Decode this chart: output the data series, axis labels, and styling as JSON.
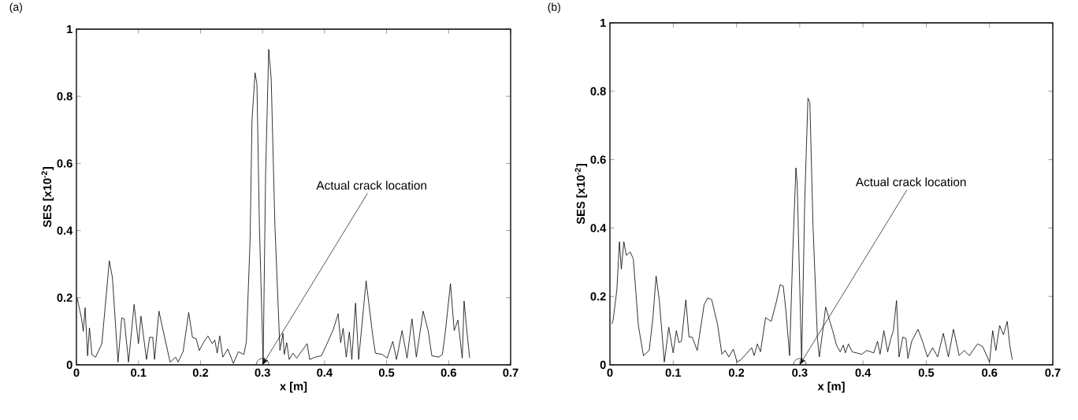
{
  "chart_data": [
    {
      "type": "line",
      "title": "(a)",
      "xlabel": "x [m]",
      "ylabel": "SES [x10$^{-2}$]",
      "color": "#000000",
      "xlim": [
        0,
        0.7
      ],
      "ylim": [
        0,
        1
      ],
      "xticks": [
        0,
        0.1,
        0.2,
        0.3,
        0.4,
        0.5,
        0.6,
        0.7
      ],
      "yticks": [
        0,
        0.2,
        0.4,
        0.6,
        0.8,
        1
      ],
      "x": [
        0.001,
        0.008,
        0.011,
        0.014,
        0.018,
        0.021,
        0.025,
        0.031,
        0.041,
        0.053,
        0.058,
        0.067,
        0.073,
        0.077,
        0.084,
        0.093,
        0.1,
        0.104,
        0.113,
        0.118,
        0.123,
        0.126,
        0.133,
        0.138,
        0.151,
        0.16,
        0.164,
        0.172,
        0.181,
        0.187,
        0.193,
        0.198,
        0.206,
        0.212,
        0.219,
        0.223,
        0.227,
        0.231,
        0.236,
        0.244,
        0.253,
        0.261,
        0.27,
        0.274,
        0.28,
        0.283,
        0.288,
        0.291,
        0.295,
        0.301,
        0.305,
        0.31,
        0.314,
        0.32,
        0.326,
        0.328,
        0.333,
        0.335,
        0.339,
        0.343,
        0.349,
        0.355,
        0.372,
        0.376,
        0.385,
        0.395,
        0.404,
        0.414,
        0.422,
        0.426,
        0.43,
        0.435,
        0.44,
        0.444,
        0.45,
        0.455,
        0.467,
        0.478,
        0.482,
        0.493,
        0.501,
        0.51,
        0.516,
        0.525,
        0.533,
        0.541,
        0.548,
        0.559,
        0.567,
        0.573,
        0.584,
        0.59,
        0.595,
        0.603,
        0.609,
        0.615,
        0.622,
        0.625,
        0.63,
        0.634
      ],
      "values": [
        0.2,
        0.14,
        0.1,
        0.17,
        0.027,
        0.11,
        0.03,
        0.023,
        0.063,
        0.31,
        0.26,
        0.008,
        0.14,
        0.137,
        0.008,
        0.18,
        0.063,
        0.145,
        0.016,
        0.082,
        0.082,
        0.016,
        0.16,
        0.117,
        0.008,
        0.023,
        0.008,
        0.04,
        0.156,
        0.082,
        0.078,
        0.043,
        0.07,
        0.086,
        0.063,
        0.074,
        0.035,
        0.086,
        0.023,
        0.047,
        0.004,
        0.039,
        0.031,
        0.07,
        0.375,
        0.727,
        0.87,
        0.836,
        0.414,
        0.004,
        0.57,
        0.94,
        0.852,
        0.414,
        0.14,
        0.043,
        0.094,
        0.031,
        0.066,
        0.016,
        0.035,
        0.02,
        0.063,
        0.016,
        0.023,
        0.027,
        0.063,
        0.105,
        0.152,
        0.066,
        0.109,
        0.023,
        0.098,
        0.016,
        0.184,
        0.016,
        0.25,
        0.082,
        0.035,
        0.031,
        0.02,
        0.07,
        0.016,
        0.102,
        0.02,
        0.137,
        0.023,
        0.16,
        0.102,
        0.027,
        0.023,
        0.031,
        0.102,
        0.242,
        0.102,
        0.133,
        0.02,
        0.19,
        0.09,
        0.02
      ],
      "annotations": [
        {
          "text": "Actual crack location",
          "x": 0.3,
          "y": 0
        }
      ]
    },
    {
      "type": "line",
      "title": "(b)",
      "xlabel": "x [m]",
      "ylabel": "SES [x10$^{-2}$]",
      "color": "#000000",
      "xlim": [
        0,
        0.7
      ],
      "ylim": [
        0,
        1
      ],
      "xticks": [
        0,
        0.1,
        0.2,
        0.3,
        0.4,
        0.5,
        0.6,
        0.7
      ],
      "yticks": [
        0,
        0.2,
        0.4,
        0.6,
        0.8,
        1
      ],
      "x": [
        0.003,
        0.005,
        0.011,
        0.015,
        0.018,
        0.022,
        0.026,
        0.032,
        0.037,
        0.045,
        0.053,
        0.062,
        0.068,
        0.073,
        0.078,
        0.086,
        0.093,
        0.1,
        0.105,
        0.109,
        0.113,
        0.12,
        0.125,
        0.13,
        0.138,
        0.149,
        0.155,
        0.161,
        0.17,
        0.177,
        0.182,
        0.188,
        0.195,
        0.201,
        0.207,
        0.215,
        0.224,
        0.228,
        0.233,
        0.238,
        0.246,
        0.255,
        0.263,
        0.269,
        0.274,
        0.278,
        0.284,
        0.289,
        0.294,
        0.296,
        0.303,
        0.308,
        0.313,
        0.316,
        0.321,
        0.328,
        0.331,
        0.337,
        0.341,
        0.347,
        0.352,
        0.358,
        0.364,
        0.369,
        0.372,
        0.377,
        0.383,
        0.398,
        0.406,
        0.417,
        0.423,
        0.427,
        0.433,
        0.439,
        0.444,
        0.448,
        0.453,
        0.457,
        0.463,
        0.468,
        0.471,
        0.477,
        0.487,
        0.494,
        0.502,
        0.51,
        0.518,
        0.527,
        0.535,
        0.543,
        0.552,
        0.56,
        0.568,
        0.581,
        0.589,
        0.6,
        0.605,
        0.61,
        0.616,
        0.622,
        0.628,
        0.632,
        0.636
      ],
      "values": [
        0.12,
        0.13,
        0.22,
        0.36,
        0.28,
        0.36,
        0.32,
        0.33,
        0.31,
        0.115,
        0.027,
        0.042,
        0.138,
        0.26,
        0.19,
        0.008,
        0.11,
        0.035,
        0.1,
        0.065,
        0.069,
        0.19,
        0.081,
        0.081,
        0.042,
        0.177,
        0.196,
        0.19,
        0.119,
        0.031,
        0.042,
        0.023,
        0.046,
        0.008,
        0.015,
        0.031,
        0.05,
        0.027,
        0.061,
        0.038,
        0.138,
        0.127,
        0.184,
        0.234,
        0.23,
        0.161,
        0.027,
        0.33,
        0.576,
        0.53,
        0.008,
        0.484,
        0.78,
        0.768,
        0.407,
        0.077,
        0.023,
        0.108,
        0.169,
        0.131,
        0.1,
        0.058,
        0.038,
        0.058,
        0.035,
        0.061,
        0.038,
        0.031,
        0.042,
        0.035,
        0.069,
        0.031,
        0.1,
        0.038,
        0.077,
        0.1,
        0.188,
        0.023,
        0.081,
        0.077,
        0.019,
        0.069,
        0.104,
        0.069,
        0.023,
        0.05,
        0.023,
        0.092,
        0.023,
        0.104,
        0.027,
        0.042,
        0.027,
        0.061,
        0.054,
        0.008,
        0.1,
        0.042,
        0.115,
        0.088,
        0.127,
        0.058,
        0.015
      ],
      "annotations": [
        {
          "text": "Actual crack location",
          "x": 0.3,
          "y": 0
        }
      ]
    }
  ]
}
